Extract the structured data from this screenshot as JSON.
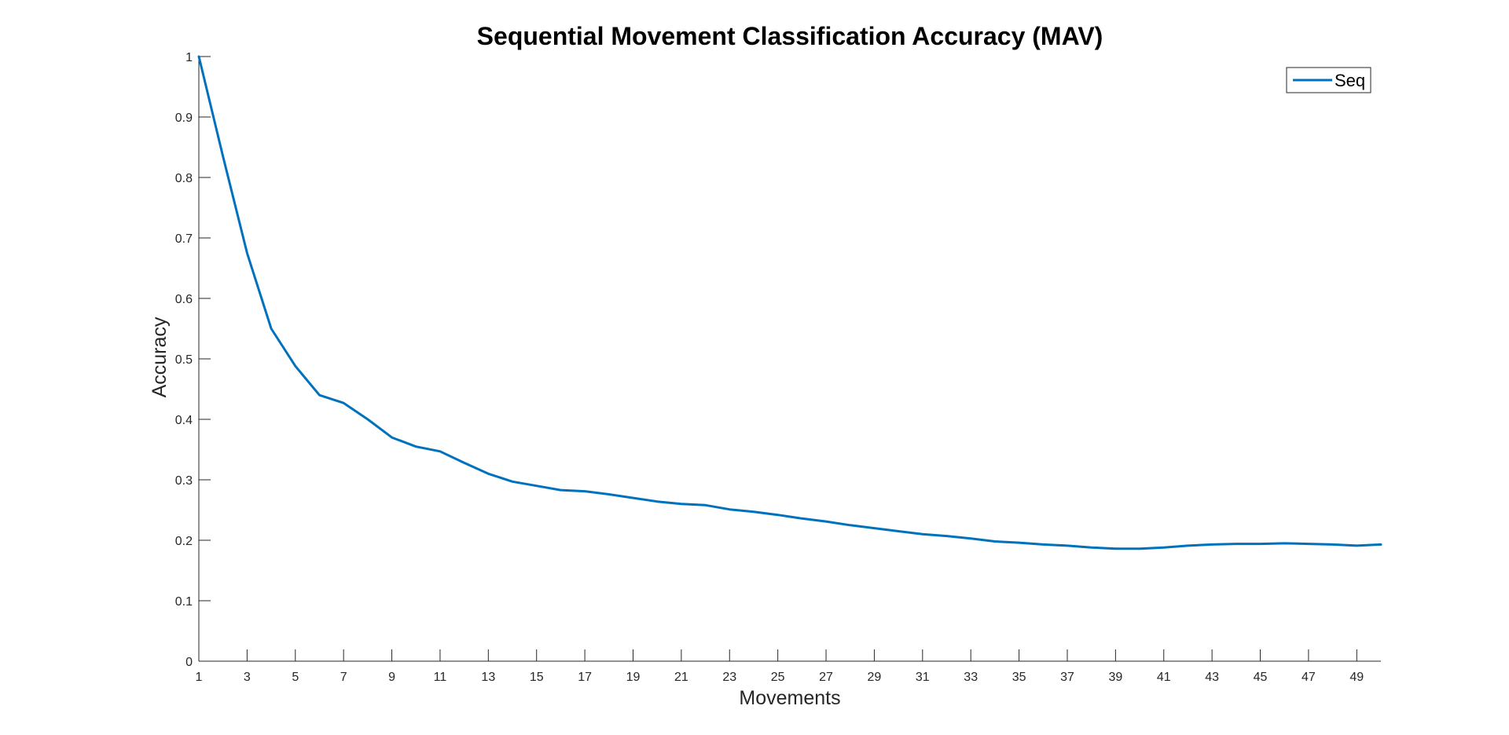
{
  "chart_data": {
    "type": "line",
    "title": "Sequential Movement Classification Accuracy (MAV)",
    "xlabel": "Movements",
    "ylabel": "Accuracy",
    "xlim": [
      1,
      50
    ],
    "ylim": [
      0,
      1
    ],
    "xticks": [
      1,
      3,
      5,
      7,
      9,
      11,
      13,
      15,
      17,
      19,
      21,
      23,
      25,
      27,
      29,
      31,
      33,
      35,
      37,
      39,
      41,
      43,
      45,
      47,
      49
    ],
    "yticks": [
      0,
      0.1,
      0.2,
      0.3,
      0.4,
      0.5,
      0.6,
      0.7,
      0.8,
      0.9,
      1
    ],
    "ytick_labels": [
      "0",
      "0.1",
      "0.2",
      "0.3",
      "0.4",
      "0.5",
      "0.6",
      "0.7",
      "0.8",
      "0.9",
      "1"
    ],
    "grid": false,
    "legend_position": "top-right",
    "x": [
      1,
      2,
      3,
      4,
      5,
      6,
      7,
      8,
      9,
      10,
      11,
      12,
      13,
      14,
      15,
      16,
      17,
      18,
      19,
      20,
      21,
      22,
      23,
      24,
      25,
      26,
      27,
      28,
      29,
      30,
      31,
      32,
      33,
      34,
      35,
      36,
      37,
      38,
      39,
      40,
      41,
      42,
      43,
      44,
      45,
      46,
      47,
      48,
      49,
      50
    ],
    "series": [
      {
        "name": "Seq",
        "color": "#0072BD",
        "values": [
          1.0,
          0.835,
          0.675,
          0.55,
          0.488,
          0.44,
          0.427,
          0.4,
          0.37,
          0.355,
          0.347,
          0.328,
          0.31,
          0.297,
          0.29,
          0.283,
          0.281,
          0.276,
          0.27,
          0.264,
          0.26,
          0.258,
          0.251,
          0.247,
          0.242,
          0.236,
          0.231,
          0.225,
          0.22,
          0.215,
          0.21,
          0.207,
          0.203,
          0.198,
          0.196,
          0.193,
          0.191,
          0.188,
          0.186,
          0.186,
          0.188,
          0.191,
          0.193,
          0.194,
          0.194,
          0.195,
          0.194,
          0.193,
          0.191,
          0.193
        ]
      }
    ]
  }
}
